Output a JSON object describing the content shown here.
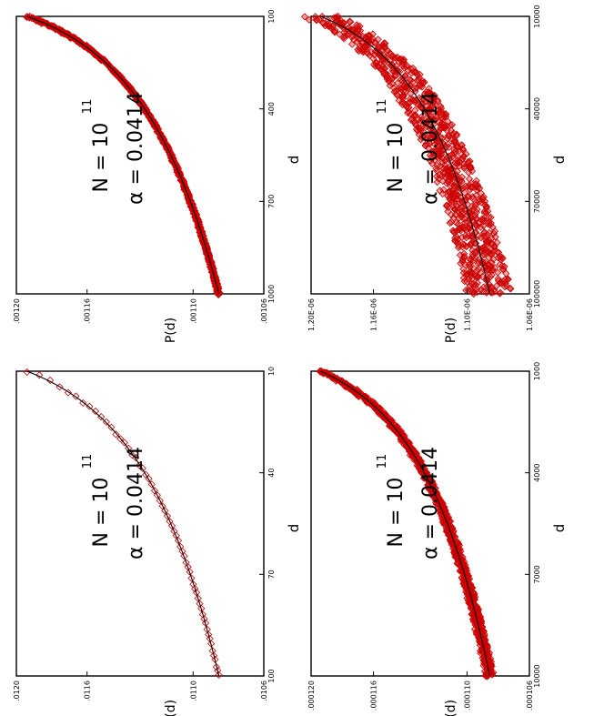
{
  "figure": {
    "orientation": "rotated 90 degrees counter-clockwise (landscape page)",
    "marker_color": "#cc0000",
    "fit_color": "#000000"
  },
  "chart_data": [
    {
      "type": "scatter",
      "title": "",
      "xlabel": "d",
      "ylabel": "P(d)",
      "annotation_n": "N = 10",
      "annotation_n_exp": "11",
      "annotation_alpha": "α = 0.0414",
      "xlim": [
        10,
        100
      ],
      "ylim": [
        0.0106,
        0.012
      ],
      "xtick_values": [
        10,
        40,
        70,
        100
      ],
      "xtick_labels": [
        "10",
        "40",
        "70",
        "100"
      ],
      "ytick_values": [
        0.0106,
        0.011,
        0.0116,
        0.012
      ],
      "ytick_labels": [
        ".0106",
        ".0110",
        ".0116",
        ".0120"
      ],
      "fit": {
        "amplitude": 0.01194,
        "alpha": 0.0414,
        "reference": 10
      },
      "marker_style": "open",
      "series": [
        {
          "name": "data",
          "x": [
            10,
            13,
            16,
            19,
            22,
            25,
            28,
            31,
            34,
            37,
            40,
            43,
            46,
            49,
            52,
            55,
            58,
            61,
            64,
            67,
            70,
            73,
            76,
            79,
            82,
            85,
            88,
            91,
            94,
            97,
            100
          ],
          "y": [
            0.01194,
            0.01175,
            0.0116,
            0.01148,
            0.01138,
            0.0113,
            0.01123,
            0.01118,
            0.01113,
            0.01109,
            0.01104,
            0.01101,
            0.01098,
            0.01096,
            0.01093,
            0.01091,
            0.01089,
            0.01087,
            0.01085,
            0.01083,
            0.01082,
            0.0108,
            0.01079,
            0.01077,
            0.01076,
            0.01075,
            0.01073,
            0.01072,
            0.01071,
            0.0107,
            0.01069
          ]
        }
      ]
    },
    {
      "type": "scatter",
      "title": "",
      "xlabel": "d",
      "ylabel": "P(d)",
      "annotation_n": "N = 10",
      "annotation_n_exp": "11",
      "annotation_alpha": "α = 0.0414",
      "xlim": [
        100,
        1000
      ],
      "ylim": [
        0.00106,
        0.0012
      ],
      "xtick_values": [
        100,
        400,
        700,
        1000
      ],
      "xtick_labels": [
        "100",
        "400",
        "700",
        "1000"
      ],
      "ytick_values": [
        0.00106,
        0.0011,
        0.00116,
        0.0012
      ],
      "ytick_labels": [
        ".00106",
        ".00110",
        ".00116",
        ".00120"
      ],
      "fit": {
        "amplitude": 0.001194,
        "alpha": 0.0414,
        "reference": 100
      },
      "marker_style": "dense",
      "series": [
        {
          "name": "data",
          "x": [
            100,
            200,
            300,
            400,
            500,
            600,
            700,
            800,
            900,
            1000
          ],
          "y": [
            0.001194,
            0.00116,
            0.00114,
            0.001127,
            0.001116,
            0.001108,
            0.001102,
            0.001096,
            0.001091,
            0.001087
          ]
        }
      ]
    },
    {
      "type": "scatter",
      "title": "",
      "xlabel": "d",
      "ylabel": "P(d)",
      "annotation_n": "N = 10",
      "annotation_n_exp": "11",
      "annotation_alpha": "α = 0.0414",
      "xlim": [
        1000,
        10000
      ],
      "ylim": [
        0.000106,
        0.00012
      ],
      "xtick_values": [
        1000,
        4000,
        7000,
        10000
      ],
      "xtick_labels": [
        "1000",
        "4000",
        "7000",
        "10000"
      ],
      "ytick_values": [
        0.000106,
        0.00011,
        0.000116,
        0.00012
      ],
      "ytick_labels": [
        ".000106",
        ".000110",
        ".000116",
        ".000120"
      ],
      "fit": {
        "amplitude": 0.0001194,
        "alpha": 0.0414,
        "reference": 1000
      },
      "marker_style": "band",
      "series": [
        {
          "name": "data",
          "x": [
            1000,
            2000,
            3000,
            4000,
            5000,
            6000,
            7000,
            8000,
            9000,
            10000
          ],
          "y": [
            0.0001194,
            0.000116,
            0.000114,
            0.0001127,
            0.0001116,
            0.0001108,
            0.0001102,
            0.0001096,
            0.0001091,
            0.0001087
          ]
        }
      ]
    },
    {
      "type": "scatter",
      "title": "",
      "xlabel": "d",
      "ylabel": "P(d)",
      "annotation_n": "N = 10",
      "annotation_n_exp": "11",
      "annotation_alpha": "α = 0.0414",
      "xlim": [
        10000,
        100000
      ],
      "ylim": [
        1.06e-06,
        1.2e-06
      ],
      "xtick_values": [
        10000,
        40000,
        70000,
        100000
      ],
      "xtick_labels": [
        "10000",
        "40000",
        "70000",
        "100000"
      ],
      "ytick_values": [
        1.06e-06,
        1.1e-06,
        1.16e-06,
        1.2e-06
      ],
      "ytick_labels": [
        "1.06E-06",
        "1.10E-06",
        "1.16E-06",
        "1.20E-06"
      ],
      "fit": {
        "amplitude": 1.194e-06,
        "alpha": 0.0414,
        "reference": 10000
      },
      "marker_style": "wide-band",
      "series": [
        {
          "name": "data",
          "x": [
            10000,
            20000,
            30000,
            40000,
            50000,
            60000,
            70000,
            80000,
            90000,
            100000
          ],
          "y": [
            1.194e-06,
            1.16e-06,
            1.14e-06,
            1.127e-06,
            1.116e-06,
            1.108e-06,
            1.102e-06,
            1.096e-06,
            1.091e-06,
            1.087e-06
          ]
        }
      ]
    }
  ]
}
